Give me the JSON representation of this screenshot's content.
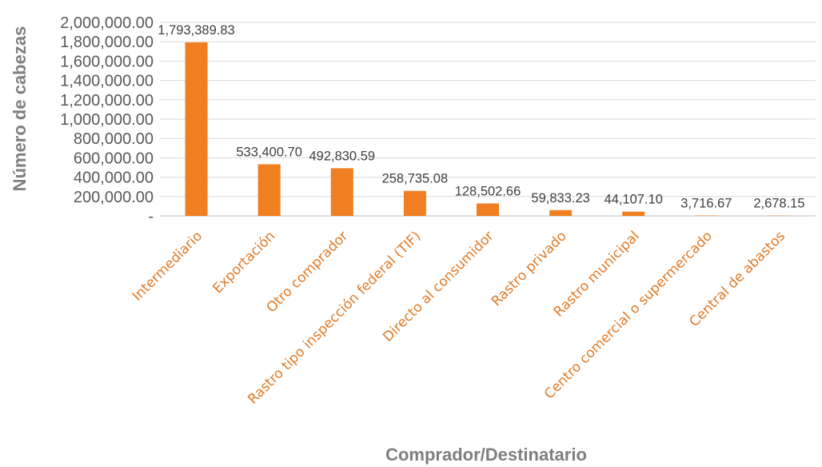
{
  "chart_data": {
    "type": "bar",
    "title": "",
    "xlabel": "Comprador/Destinatario",
    "ylabel": "Número de cabezas",
    "ylim": [
      0,
      2000000
    ],
    "grid": true,
    "legend": "none",
    "bar_color": "#f07f22",
    "y_ticks": [
      "-",
      "200,000.00",
      "400,000.00",
      "600,000.00",
      "800,000.00",
      "1,000,000.00",
      "1,200,000.00",
      "1,400,000.00",
      "1,600,000.00",
      "1,800,000.00",
      "2,000,000.00"
    ],
    "categories": [
      "Intermediario",
      "Exportación",
      "Otro comprador",
      "Rastro tipo inspección federal (TIF)",
      "Directo al consumidor",
      "Rastro privado",
      "Rastro municipal",
      "Centro comercial o supermercado",
      "Central de abastos"
    ],
    "values": [
      1793389.83,
      533400.7,
      492830.59,
      258735.08,
      128502.66,
      59833.23,
      44107.1,
      3716.67,
      2678.15
    ],
    "data_labels": [
      "1,793,389.83",
      "533,400.70",
      "492,830.59",
      "258,735.08",
      "128,502.66",
      "59,833.23",
      "44,107.10",
      "3,716.67",
      "2,678.15"
    ]
  }
}
